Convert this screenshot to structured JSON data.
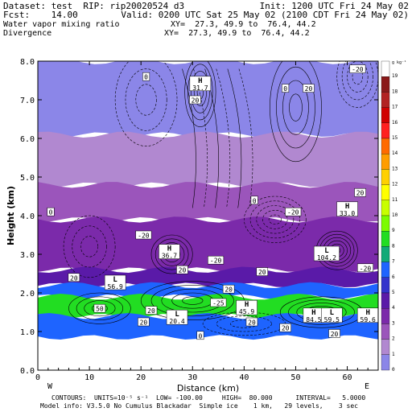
{
  "header": {
    "dataset": "Dataset: test  RIP: rip20020524 d3",
    "init": "Init: 1200 UTC Fri 24 May 02",
    "fcst": "Fcst:    14.00",
    "valid": "Valid: 0200 UTC Sat 25 May 02 (2100 CDT Fri 24 May 02)",
    "field1": "Water vapor mixing ratio",
    "field1_xy": "XY=  27.3, 49.9 to  76.4, 44.2",
    "field2": "Divergence",
    "field2_xy": "XY=  27.3, 49.9 to  76.4, 44.2"
  },
  "footer": {
    "line1": "CONTOURS:  UNITS=10⁻⁵ s⁻¹  LOW= -100.00     HIGH=  80.000      INTERVAL=   5.0000",
    "line2": "Model info: V3.5.0 No Cumulus Blackadar  Simple ice    1 km,   29 levels,    3 sec"
  },
  "endpoints": {
    "left": "W",
    "right": "E"
  },
  "colorbar": {
    "unit_label": "g kg⁻¹",
    "labels": [
      "19",
      "18",
      "17",
      "16",
      "15",
      "14",
      "13",
      "12",
      "11",
      "10",
      "9",
      "8",
      "7",
      "6",
      "5",
      "4",
      "3",
      "2",
      "1",
      "0"
    ],
    "colors": [
      "#ffffff",
      "#8b1a1a",
      "#b22222",
      "#d00000",
      "#ff2020",
      "#ff6a00",
      "#ff9d00",
      "#ffd000",
      "#ffff00",
      "#c8ff00",
      "#7cfc00",
      "#22dd22",
      "#11aa77",
      "#1e64ff",
      "#3333cc",
      "#5a1aa8",
      "#7b2aaa",
      "#9b55bb",
      "#b188d0",
      "#8b86e8"
    ]
  },
  "chart_data": {
    "type": "heatmap",
    "title": "Water vapor mixing ratio / Divergence",
    "xlabel": "Distance (km)",
    "ylabel": "Height (km)",
    "xlim": [
      0,
      66
    ],
    "ylim": [
      0,
      8.0
    ],
    "x_ticks": [
      0,
      10,
      20,
      30,
      40,
      50,
      60
    ],
    "y_ticks": [
      "0.0",
      "1.0",
      "2.0",
      "3.0",
      "4.0",
      "5.0",
      "6.0",
      "7.0",
      "8.0"
    ],
    "bands": [
      {
        "top": 8.0,
        "bottom": 6.1,
        "color": "#8b86e8"
      },
      {
        "top": 6.1,
        "bottom": 4.8,
        "color": "#b188d0"
      },
      {
        "top": 4.8,
        "bottom": 3.9,
        "color": "#9b55bb"
      },
      {
        "top": 3.9,
        "bottom": 2.6,
        "color": "#7b2aaa"
      },
      {
        "top": 2.6,
        "bottom": 2.2,
        "color": "#5a1aa8"
      },
      {
        "top": 2.2,
        "bottom": 1.9,
        "color": "#1e64ff"
      },
      {
        "top": 1.9,
        "bottom": 1.4,
        "color": "#22dd22"
      },
      {
        "top": 1.4,
        "bottom": 0.85,
        "color": "#1e64ff"
      }
    ],
    "hi_lo_labels": [
      {
        "letter": "H",
        "value": "31.7",
        "x": 31.5,
        "y": 7.4
      },
      {
        "letter": "H",
        "value": "33.0",
        "x": 60.0,
        "y": 4.15
      },
      {
        "letter": "H",
        "value": "36.7",
        "x": 25.5,
        "y": 3.05
      },
      {
        "letter": "L",
        "value": "104.2",
        "x": 56.0,
        "y": 3.0
      },
      {
        "letter": "H",
        "value": "45.9",
        "x": 40.5,
        "y": 1.6
      },
      {
        "letter": "H",
        "value": "84.5",
        "x": 53.5,
        "y": 1.4
      },
      {
        "letter": "L",
        "value": "59.5",
        "x": 57.0,
        "y": 1.4
      },
      {
        "letter": "H",
        "value": "59.6",
        "x": 64.0,
        "y": 1.4
      },
      {
        "letter": "L",
        "value": "20.4",
        "x": 27.0,
        "y": 1.35
      },
      {
        "letter": "L",
        "value": "56.9",
        "x": 15.0,
        "y": 2.25
      }
    ],
    "contour_labels": [
      {
        "value": "0",
        "x": 21.0,
        "y": 7.6
      },
      {
        "value": "20",
        "x": 30.5,
        "y": 7.0
      },
      {
        "value": "-20",
        "x": 62.0,
        "y": 7.8
      },
      {
        "value": "0",
        "x": 48.0,
        "y": 7.3
      },
      {
        "value": "20",
        "x": 52.5,
        "y": 7.3
      },
      {
        "value": "0",
        "x": 2.5,
        "y": 4.1
      },
      {
        "value": "0",
        "x": 42.0,
        "y": 4.4
      },
      {
        "value": "-20",
        "x": 49.5,
        "y": 4.1
      },
      {
        "value": "20",
        "x": 62.5,
        "y": 4.6
      },
      {
        "value": "-20",
        "x": 20.5,
        "y": 3.5
      },
      {
        "value": "-20",
        "x": 34.5,
        "y": 2.85
      },
      {
        "value": "20",
        "x": 28.0,
        "y": 2.6
      },
      {
        "value": "20",
        "x": 43.5,
        "y": 2.55
      },
      {
        "value": "-20",
        "x": 63.5,
        "y": 2.65
      },
      {
        "value": "20",
        "x": 7.0,
        "y": 2.4
      },
      {
        "value": "20",
        "x": 37.0,
        "y": 2.1
      },
      {
        "value": "-25",
        "x": 35.0,
        "y": 1.75
      },
      {
        "value": "20",
        "x": 22.0,
        "y": 1.55
      },
      {
        "value": "20",
        "x": 20.5,
        "y": 1.25
      },
      {
        "value": "20",
        "x": 41.5,
        "y": 1.25
      },
      {
        "value": "20",
        "x": 48.0,
        "y": 1.1
      },
      {
        "value": "20",
        "x": 57.5,
        "y": 0.95
      },
      {
        "value": "0",
        "x": 31.5,
        "y": 0.9
      },
      {
        "value": "50",
        "x": 12.0,
        "y": 1.6
      }
    ]
  }
}
